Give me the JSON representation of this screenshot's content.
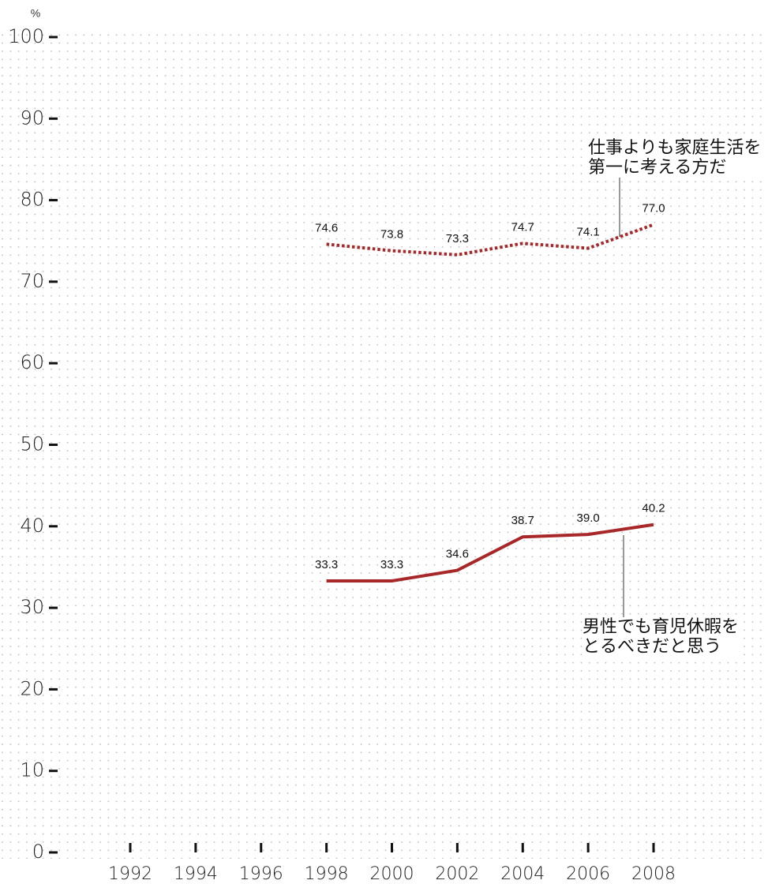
{
  "chart_data": {
    "type": "line",
    "unit": "%",
    "x": [
      1998,
      2000,
      2002,
      2004,
      2006,
      2008
    ],
    "xlim": [
      1992,
      2008
    ],
    "xticks": [
      1992,
      1994,
      1996,
      1998,
      2000,
      2002,
      2004,
      2006,
      2008
    ],
    "ylim": [
      0,
      100
    ],
    "yticks": [
      0,
      10,
      20,
      30,
      40,
      50,
      60,
      70,
      80,
      90,
      100
    ],
    "grid": true,
    "series": [
      {
        "name": "仕事よりも家庭生活を第一に考える方だ",
        "color": "#a8282a",
        "style": "dotted",
        "values": [
          74.6,
          73.8,
          73.3,
          74.7,
          74.1,
          77.0
        ],
        "value_labels": [
          "74.6",
          "73.8",
          "73.3",
          "74.7",
          "74.1",
          "77.0"
        ]
      },
      {
        "name": "男性でも育児休暇をとるべきだと思う",
        "color": "#a8282a",
        "style": "solid",
        "values": [
          33.3,
          33.3,
          34.6,
          38.7,
          39.0,
          40.2
        ],
        "value_labels": [
          "33.3",
          "33.3",
          "34.6",
          "38.7",
          "39.0",
          "40.2"
        ]
      }
    ]
  }
}
